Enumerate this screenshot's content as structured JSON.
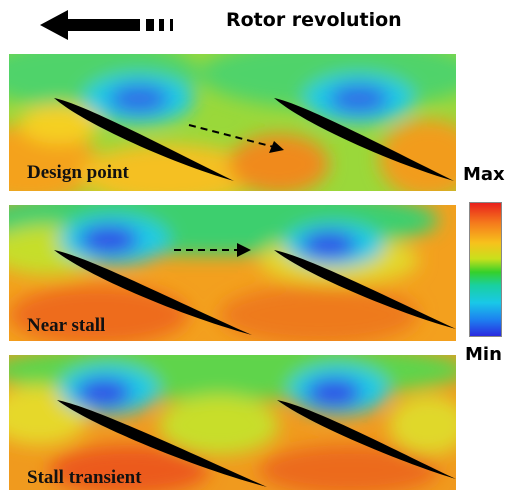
{
  "header": {
    "title": "Rotor revolution",
    "arrow_icon": "left-arrow-icon"
  },
  "legend": {
    "max_label": "Max",
    "min_label": "Min",
    "colors": [
      "#e8201c",
      "#f57a1c",
      "#f7c21c",
      "#c8e01c",
      "#35d02a",
      "#19d0a0",
      "#19c8e8",
      "#1d7ff0",
      "#2a2adf"
    ]
  },
  "panels": [
    {
      "label": "Design point",
      "has_arrow": true
    },
    {
      "label": "Near stall",
      "has_arrow": true
    },
    {
      "label": "Stall transient",
      "has_arrow": false
    }
  ]
}
